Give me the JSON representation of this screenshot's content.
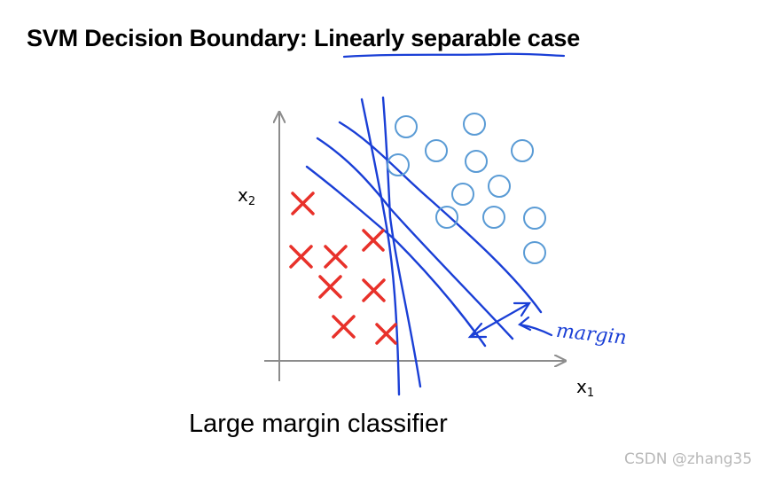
{
  "title": {
    "prefix": "SVM Decision Boundary: ",
    "highlight": "Linearly separable",
    "suffix": " case"
  },
  "axes": {
    "y_label_base": "x",
    "y_label_sub": "2",
    "x_label_base": "x",
    "x_label_sub": "1"
  },
  "annotation": "margin",
  "caption": "Large margin classifier",
  "watermark": "CSDN @zhang35",
  "colors": {
    "positive": "#5a9bd5",
    "negative": "#e8312a",
    "ink": "#1a3fd6",
    "axis": "#8c8c8c"
  },
  "classes": {
    "positive_marker": "circle",
    "negative_marker": "cross"
  }
}
